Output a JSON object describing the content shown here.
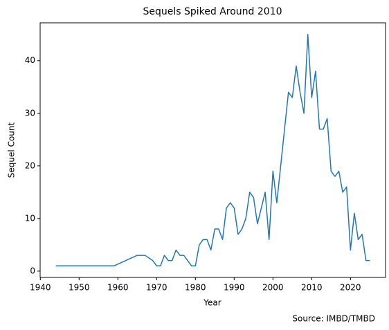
{
  "chart_data": {
    "type": "line",
    "title": "Sequels Spiked Around 2010",
    "xlabel": "Year",
    "ylabel": "Sequel Count",
    "annotation": "Source: IMBD/TMBD",
    "color": "#1f77b4",
    "x": [
      1944,
      1959,
      1965,
      1966,
      1967,
      1969,
      1970,
      1971,
      1972,
      1973,
      1974,
      1975,
      1976,
      1977,
      1979,
      1980,
      1981,
      1982,
      1983,
      1984,
      1985,
      1986,
      1987,
      1988,
      1989,
      1990,
      1991,
      1992,
      1993,
      1994,
      1995,
      1996,
      1997,
      1998,
      1999,
      2000,
      2001,
      2002,
      2003,
      2004,
      2005,
      2006,
      2007,
      2008,
      2009,
      2010,
      2011,
      2012,
      2013,
      2014,
      2015,
      2016,
      2017,
      2018,
      2019,
      2020,
      2021,
      2022,
      2023,
      2024,
      2025
    ],
    "values": [
      1,
      1,
      3,
      3,
      3,
      2,
      1,
      1,
      3,
      2,
      2,
      4,
      3,
      3,
      1,
      1,
      5,
      6,
      6,
      4,
      8,
      8,
      6,
      12,
      13,
      12,
      7,
      8,
      10,
      15,
      14,
      9,
      12,
      15,
      6,
      19,
      13,
      20,
      27,
      34,
      33,
      39,
      34,
      30,
      45,
      33,
      38,
      27,
      27,
      29,
      19,
      18,
      19,
      15,
      16,
      4,
      11,
      6,
      7,
      2,
      2
    ],
    "xlim": [
      1939.95,
      2029.05
    ],
    "xticks": [
      1940,
      1950,
      1960,
      1970,
      1980,
      1990,
      2000,
      2010,
      2020
    ],
    "ylim": [
      -1.2,
      47.2
    ],
    "yticks": [
      0,
      10,
      20,
      30,
      40
    ]
  }
}
